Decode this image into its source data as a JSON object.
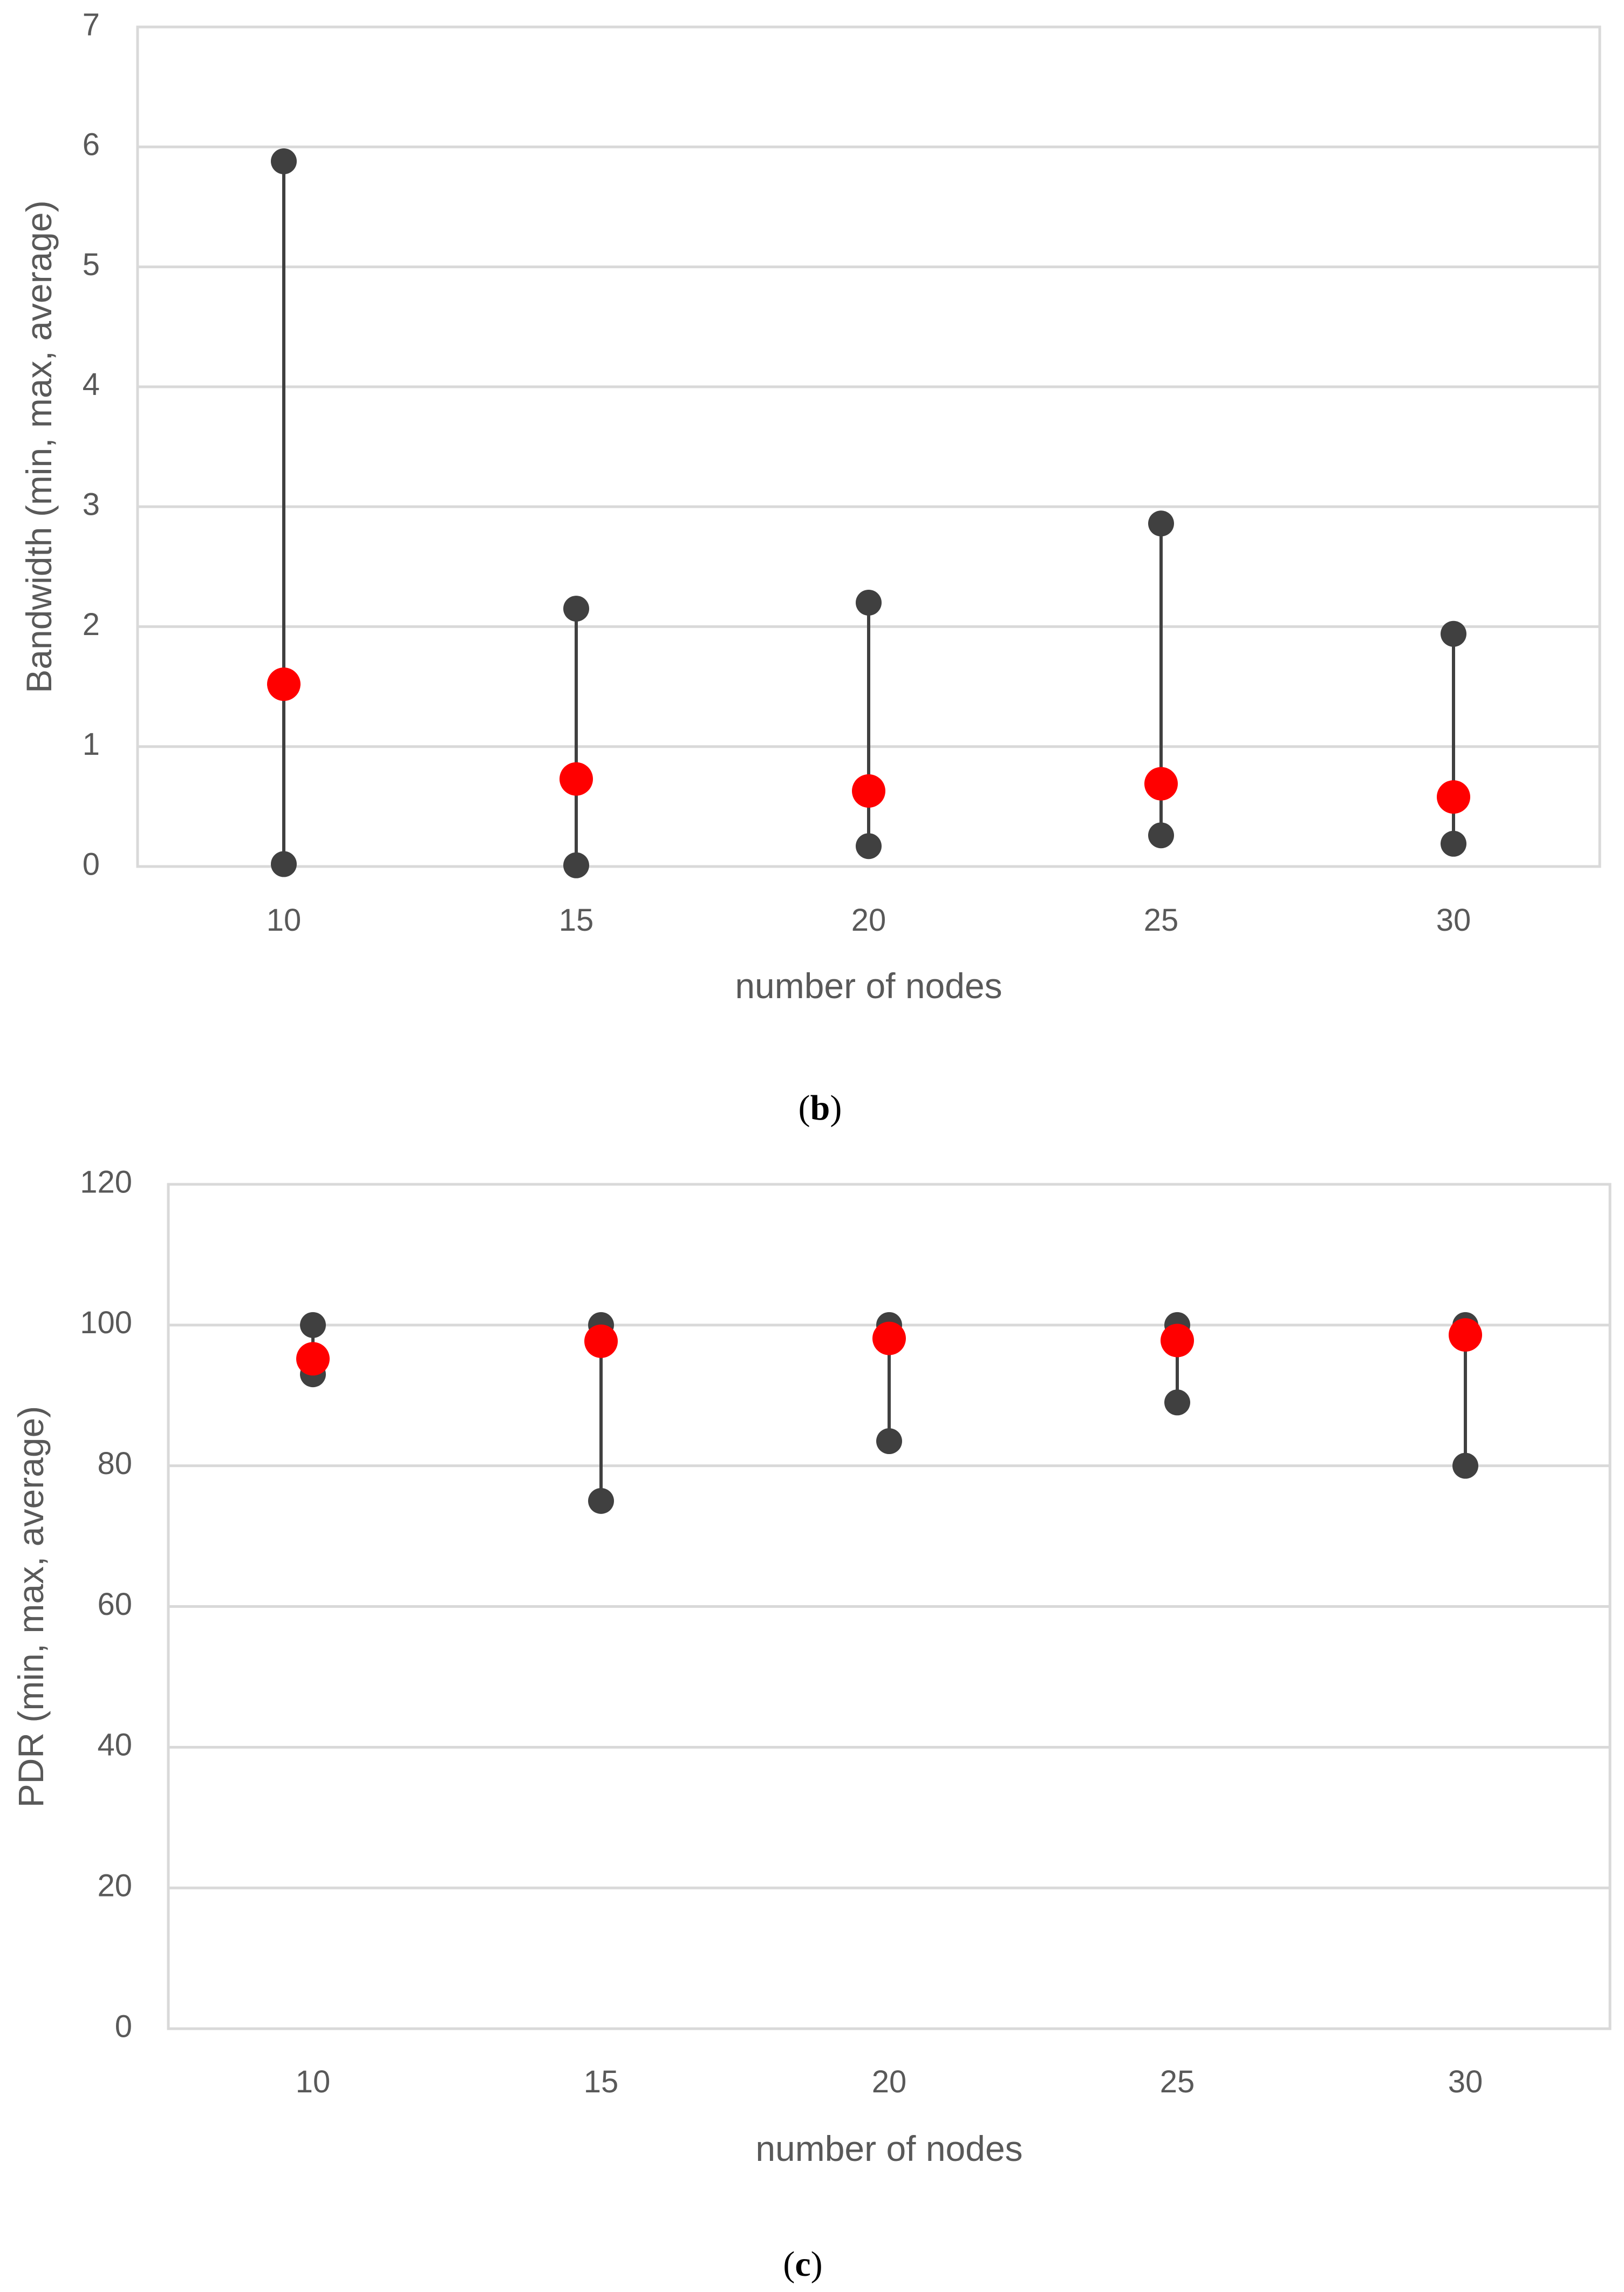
{
  "colors": {
    "range_line": "#404040",
    "min_max_marker": "#404040",
    "average_marker": "#ff0000",
    "gridline": "#d9d9d9",
    "plot_border": "#d9d9d9",
    "tick_text": "#595959"
  },
  "chart_data": [
    {
      "type": "scatter",
      "panel": "b",
      "caption": {
        "open": "(",
        "label": "b",
        "close": ")"
      },
      "xlabel": "number of nodes",
      "ylabel": "Bandwidth (min, max, average)",
      "categories": [
        "10",
        "15",
        "20",
        "25",
        "30"
      ],
      "ylim": [
        0,
        7
      ],
      "yticks": [
        "0",
        "1",
        "2",
        "3",
        "4",
        "5",
        "6",
        "7"
      ],
      "grid": true,
      "series": [
        {
          "name": "max",
          "values": [
            5.88,
            2.15,
            2.2,
            2.86,
            1.94
          ]
        },
        {
          "name": "min",
          "values": [
            0.02,
            0.01,
            0.17,
            0.26,
            0.19
          ]
        },
        {
          "name": "average",
          "values": [
            1.52,
            0.73,
            0.63,
            0.69,
            0.58
          ]
        }
      ]
    },
    {
      "type": "scatter",
      "panel": "c",
      "caption": {
        "open": "(",
        "label": "c",
        "close": ")"
      },
      "xlabel": "number of nodes",
      "ylabel": "PDR (min, max, average)",
      "categories": [
        "10",
        "15",
        "20",
        "25",
        "30"
      ],
      "ylim": [
        0,
        120
      ],
      "yticks": [
        "0",
        "20",
        "40",
        "60",
        "80",
        "100",
        "120"
      ],
      "grid": true,
      "series": [
        {
          "name": "max",
          "values": [
            100,
            100,
            100,
            100,
            100
          ]
        },
        {
          "name": "min",
          "values": [
            93,
            75,
            83.5,
            89,
            80
          ]
        },
        {
          "name": "average",
          "values": [
            95.2,
            97.7,
            98.1,
            97.8,
            98.6
          ]
        }
      ]
    }
  ]
}
